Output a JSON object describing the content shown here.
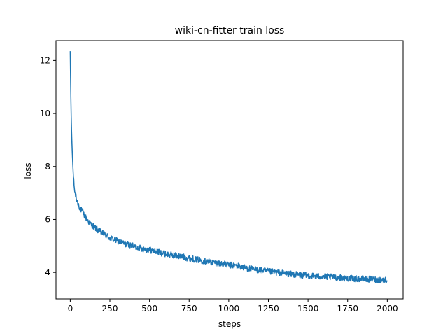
{
  "chart_data": {
    "type": "line",
    "title": "wiki-cn-fitter train loss",
    "xlabel": "steps",
    "ylabel": "loss",
    "xlim": [
      -90,
      2100
    ],
    "ylim": [
      3.0,
      12.75
    ],
    "xticks": [
      0,
      250,
      500,
      750,
      1000,
      1250,
      1500,
      1750,
      2000
    ],
    "yticks": [
      4,
      6,
      8,
      10,
      12
    ],
    "grid": false,
    "legend": "none",
    "series": [
      {
        "color": "#1f77b4",
        "points": [
          [
            0,
            12.35
          ],
          [
            2,
            11.4
          ],
          [
            4,
            10.6
          ],
          [
            6,
            9.9
          ],
          [
            8,
            9.4
          ],
          [
            10,
            9.0
          ],
          [
            13,
            8.5
          ],
          [
            16,
            8.1
          ],
          [
            20,
            7.6
          ],
          [
            25,
            7.2
          ],
          [
            30,
            7.0
          ],
          [
            40,
            6.75
          ],
          [
            50,
            6.6
          ],
          [
            60,
            6.45
          ],
          [
            75,
            6.3
          ],
          [
            100,
            6.05
          ],
          [
            125,
            5.85
          ],
          [
            150,
            5.72
          ],
          [
            175,
            5.6
          ],
          [
            200,
            5.5
          ],
          [
            250,
            5.3
          ],
          [
            300,
            5.18
          ],
          [
            350,
            5.07
          ],
          [
            400,
            4.98
          ],
          [
            450,
            4.9
          ],
          [
            500,
            4.85
          ],
          [
            550,
            4.77
          ],
          [
            600,
            4.7
          ],
          [
            650,
            4.65
          ],
          [
            700,
            4.6
          ],
          [
            750,
            4.53
          ],
          [
            800,
            4.48
          ],
          [
            850,
            4.43
          ],
          [
            900,
            4.38
          ],
          [
            950,
            4.33
          ],
          [
            1000,
            4.28
          ],
          [
            1050,
            4.25
          ],
          [
            1100,
            4.18
          ],
          [
            1150,
            4.12
          ],
          [
            1200,
            4.08
          ],
          [
            1250,
            4.03
          ],
          [
            1300,
            4.0
          ],
          [
            1350,
            3.96
          ],
          [
            1400,
            3.93
          ],
          [
            1450,
            3.9
          ],
          [
            1500,
            3.88
          ],
          [
            1550,
            3.86
          ],
          [
            1600,
            3.84
          ],
          [
            1650,
            3.82
          ],
          [
            1700,
            3.8
          ],
          [
            1750,
            3.78
          ],
          [
            1800,
            3.76
          ],
          [
            1850,
            3.75
          ],
          [
            1900,
            3.74
          ],
          [
            1950,
            3.72
          ],
          [
            2000,
            3.72
          ]
        ],
        "noise_amplitude": 0.12
      }
    ]
  }
}
